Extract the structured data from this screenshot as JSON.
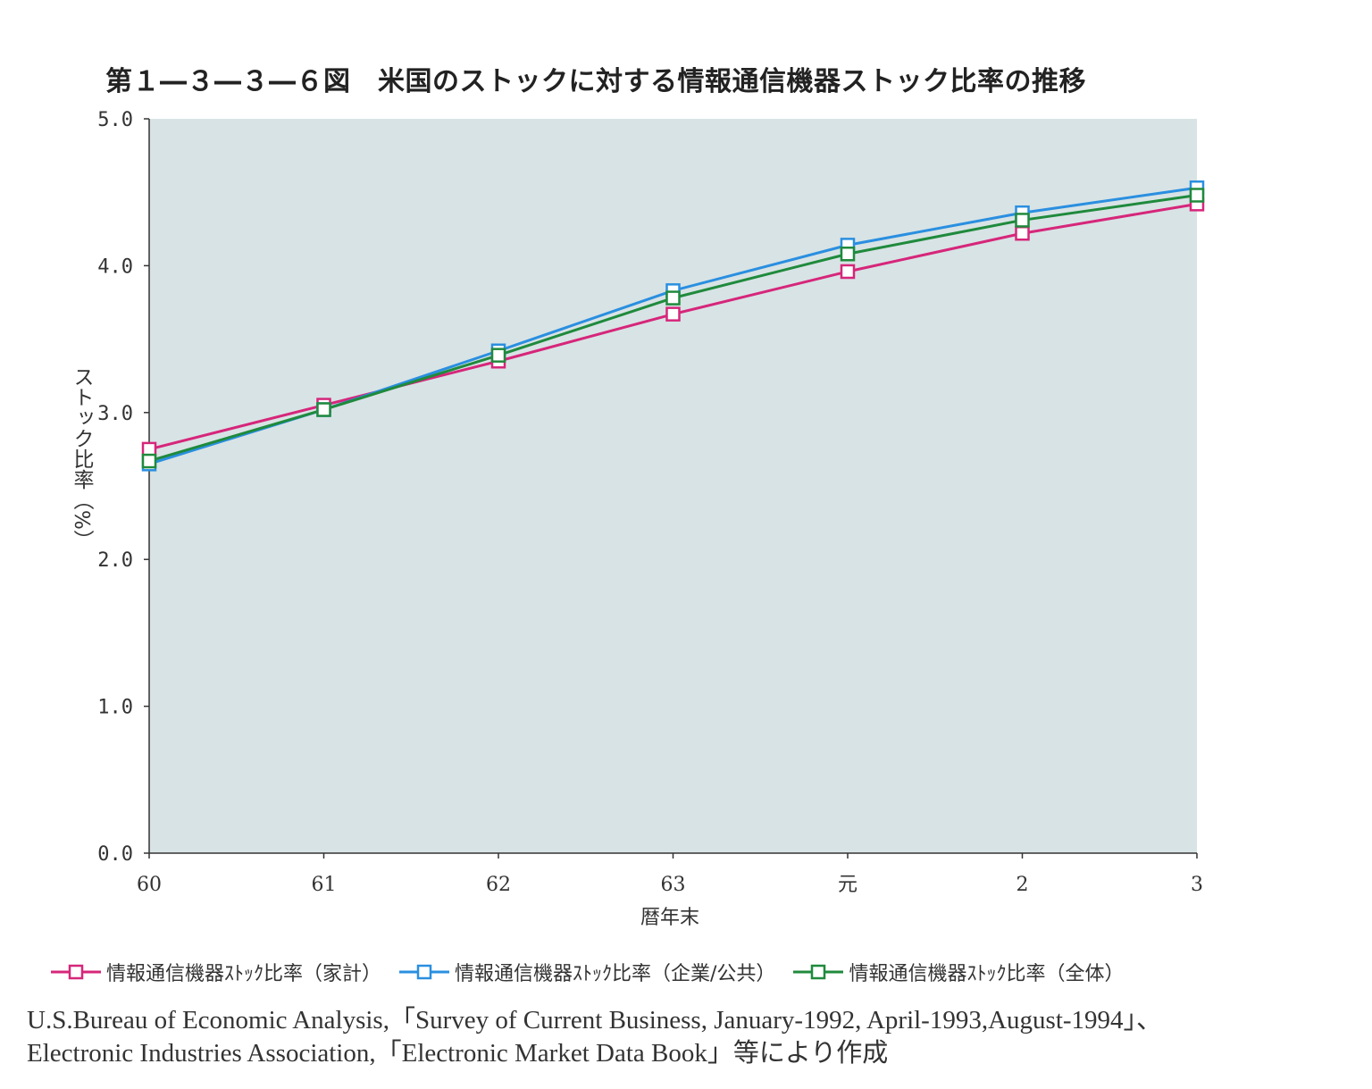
{
  "title": "第１―３―３―６図　米国のストックに対する情報通信機器ストック比率の推移",
  "chart_data": {
    "type": "line",
    "categories": [
      "60",
      "61",
      "62",
      "63",
      "元",
      "2",
      "3"
    ],
    "ylabel": "ストック比率（%）",
    "xlabel": "暦年末",
    "ylim": [
      0.0,
      5.0
    ],
    "yticks": [
      "0.0",
      "1.0",
      "2.0",
      "3.0",
      "4.0",
      "5.0"
    ],
    "grid": false,
    "legend_position": "bottom",
    "series": [
      {
        "name": "情報通信機器ｽﾄｯｸ比率（家計）",
        "color": "#d6267a",
        "values": [
          2.75,
          3.05,
          3.35,
          3.67,
          3.96,
          4.22,
          4.42
        ]
      },
      {
        "name": "情報通信機器ｽﾄｯｸ比率（企業/公共）",
        "color": "#2a8fe0",
        "values": [
          2.65,
          3.02,
          3.42,
          3.83,
          4.14,
          4.36,
          4.53
        ]
      },
      {
        "name": "情報通信機器ｽﾄｯｸ比率（全体）",
        "color": "#1f8a3c",
        "values": [
          2.67,
          3.02,
          3.39,
          3.78,
          4.08,
          4.31,
          4.48
        ]
      }
    ],
    "plot_background": "#d8e3e5"
  },
  "source": {
    "line1": "U.S.Bureau of Economic Analysis,「Survey of Current Business, January-1992, April-1993,August-1994」、",
    "line2": "Electronic Industries Association,「Electronic Market Data Book」等により作成"
  }
}
